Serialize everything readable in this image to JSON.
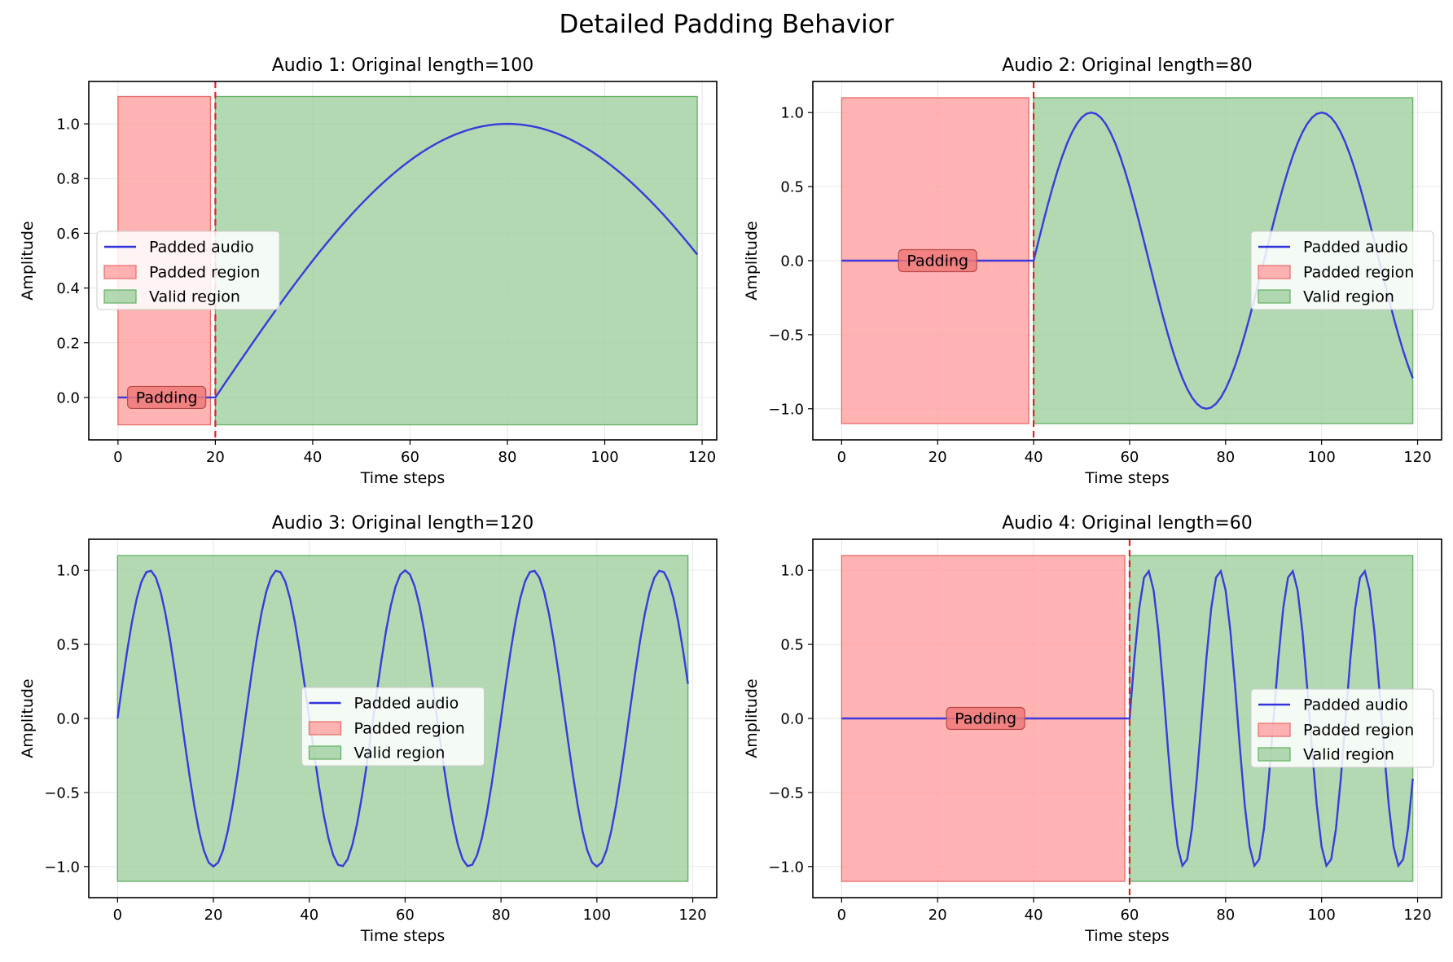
{
  "figure": {
    "title": "Detailed Padding Behavior"
  },
  "legend_labels": [
    "Padded audio",
    "Padded region",
    "Valid region"
  ],
  "padding_label": "Padding",
  "colors": {
    "signal": "#3333dd",
    "padded_region": "#ff9999",
    "padded_edge": "#e86a6a",
    "valid_region": "#9fcf9f",
    "valid_edge": "#62b062",
    "boundary_line": "#d62728",
    "padding_box": "#f07878",
    "grid": "#e6e6e6"
  },
  "chart_data": [
    {
      "type": "line",
      "title": "Audio 1: Original length=100",
      "xlabel": "Time steps",
      "ylabel": "Amplitude",
      "xlim": [
        -6,
        123
      ],
      "ylim": [
        -0.155,
        1.155
      ],
      "xticks": [
        0,
        20,
        40,
        60,
        80,
        100,
        120
      ],
      "yticks": [
        0.0,
        0.2,
        0.4,
        0.6,
        0.8,
        1.0
      ],
      "ytick_labels": [
        "0.0",
        "0.2",
        "0.4",
        "0.6",
        "0.8",
        "1.0"
      ],
      "total_length": 120,
      "pad_length": 20,
      "signal": {
        "freq_cycles": 0.4167
      },
      "regions": {
        "padded": [
          0,
          19
        ],
        "valid": [
          20,
          119
        ],
        "y_range": [
          -0.1,
          1.1
        ]
      },
      "boundary_x": 20,
      "legend_position": "center-left",
      "grid": true
    },
    {
      "type": "line",
      "title": "Audio 2: Original length=80",
      "xlabel": "Time steps",
      "ylabel": "Amplitude",
      "xlim": [
        -6,
        125
      ],
      "ylim": [
        -1.21,
        1.21
      ],
      "xticks": [
        0,
        20,
        40,
        60,
        80,
        100,
        120
      ],
      "yticks": [
        -1.0,
        -0.5,
        0.0,
        0.5,
        1.0
      ],
      "ytick_labels": [
        "−1.0",
        "−0.5",
        "0.0",
        "0.5",
        "1.0"
      ],
      "total_length": 120,
      "pad_length": 40,
      "signal": {
        "freq_cycles": 1.6667
      },
      "regions": {
        "padded": [
          0,
          39
        ],
        "valid": [
          40,
          119
        ],
        "y_range": [
          -1.1,
          1.1
        ]
      },
      "boundary_x": 40,
      "legend_position": "center-right",
      "grid": true
    },
    {
      "type": "line",
      "title": "Audio 3: Original length=120",
      "xlabel": "Time steps",
      "ylabel": "Amplitude",
      "xlim": [
        -6,
        125
      ],
      "ylim": [
        -1.21,
        1.21
      ],
      "xticks": [
        0,
        20,
        40,
        60,
        80,
        100,
        120
      ],
      "yticks": [
        -1.0,
        -0.5,
        0.0,
        0.5,
        1.0
      ],
      "ytick_labels": [
        "−1.0",
        "−0.5",
        "0.0",
        "0.5",
        "1.0"
      ],
      "total_length": 120,
      "pad_length": 0,
      "signal": {
        "freq_cycles": 4.5
      },
      "regions": {
        "padded": null,
        "valid": [
          0,
          119
        ],
        "y_range": [
          -1.1,
          1.1
        ]
      },
      "boundary_x": null,
      "legend_position": "center",
      "grid": true
    },
    {
      "type": "line",
      "title": "Audio 4: Original length=60",
      "xlabel": "Time steps",
      "ylabel": "Amplitude",
      "xlim": [
        -6,
        125
      ],
      "ylim": [
        -1.21,
        1.21
      ],
      "xticks": [
        0,
        20,
        40,
        60,
        80,
        100,
        120
      ],
      "yticks": [
        -1.0,
        -0.5,
        0.0,
        0.5,
        1.0
      ],
      "ytick_labels": [
        "−1.0",
        "−0.5",
        "0.0",
        "0.5",
        "1.0"
      ],
      "total_length": 120,
      "pad_length": 60,
      "signal": {
        "freq_cycles": 4.0
      },
      "regions": {
        "padded": [
          0,
          59
        ],
        "valid": [
          60,
          119
        ],
        "y_range": [
          -1.1,
          1.1
        ]
      },
      "boundary_x": 60,
      "legend_position": "center-right",
      "grid": true
    }
  ]
}
